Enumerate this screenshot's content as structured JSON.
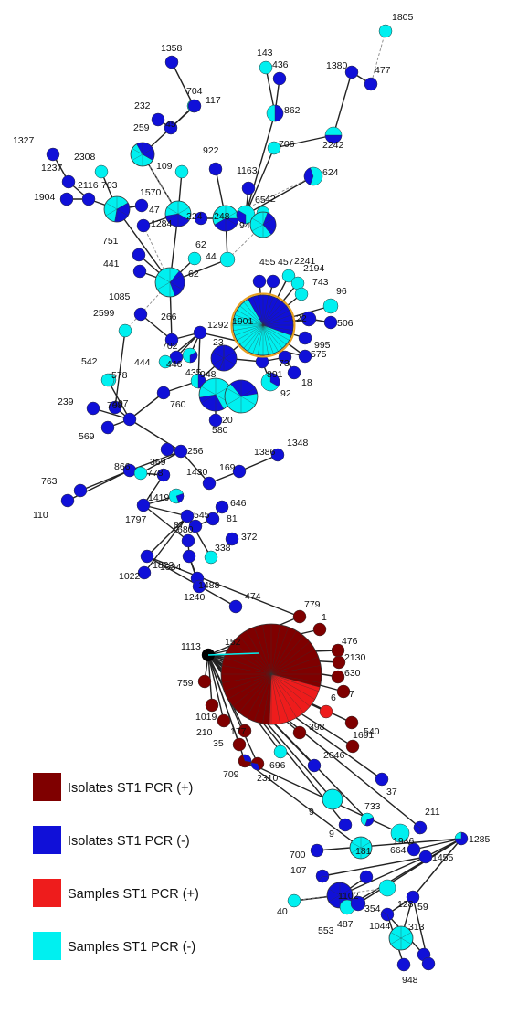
{
  "colors": {
    "isolate_pos": "#7f0000",
    "isolate_neg": "#1010d8",
    "sample_pos": "#ee1c1c",
    "sample_neg": "#00f0f0",
    "edge": "#222222",
    "ring": "#e8a020"
  },
  "legend": [
    {
      "label": "Isolates ST1 PCR (+)",
      "color_key": "isolate_pos"
    },
    {
      "label": "Isolates ST1 PCR (-)",
      "color_key": "isolate_neg"
    },
    {
      "label": "Samples ST1 PCR (+)",
      "color_key": "sample_pos"
    },
    {
      "label": "Samples ST1 PCR (-)",
      "color_key": "sample_neg"
    }
  ],
  "node_labels": [
    "1805",
    "1358",
    "143",
    "436",
    "477",
    "1380",
    "704",
    "117",
    "232",
    "45",
    "862",
    "2242",
    "259",
    "706",
    "1327",
    "2308",
    "922",
    "624",
    "109",
    "1163",
    "1237",
    "2116",
    "1904",
    "703",
    "1570",
    "47",
    "224",
    "248",
    "65",
    "42",
    "94",
    "1284",
    "62",
    "44",
    "751",
    "441",
    "62",
    "455",
    "457",
    "2241",
    "2194",
    "743",
    "96",
    "1085",
    "1901",
    "22",
    "506",
    "2599",
    "266",
    "1292",
    "23",
    "995",
    "575",
    "702",
    "444",
    "446",
    "435",
    "891",
    "73",
    "18",
    "542",
    "578",
    "948",
    "92",
    "239",
    "708",
    "760",
    "20",
    "580",
    "407",
    "569",
    "256",
    "369",
    "169",
    "1386",
    "1348",
    "866",
    "778",
    "1430",
    "763",
    "110",
    "1419",
    "1797",
    "646",
    "81",
    "87",
    "545",
    "680",
    "372",
    "338",
    "1822",
    "1022",
    "1334",
    "1488",
    "1240",
    "474",
    "779",
    "1",
    "152",
    "1113",
    "476",
    "2130",
    "630",
    "759",
    "7",
    "6",
    "1019",
    "398",
    "1691",
    "540",
    "210",
    "177",
    "35",
    "2046",
    "709",
    "2310",
    "696",
    "37",
    "9",
    "733",
    "211",
    "9",
    "181",
    "664",
    "1946",
    "1285",
    "700",
    "1455",
    "107",
    "1102",
    "354",
    "40",
    "553",
    "487",
    "128",
    "59",
    "1044",
    "313",
    "948"
  ]
}
